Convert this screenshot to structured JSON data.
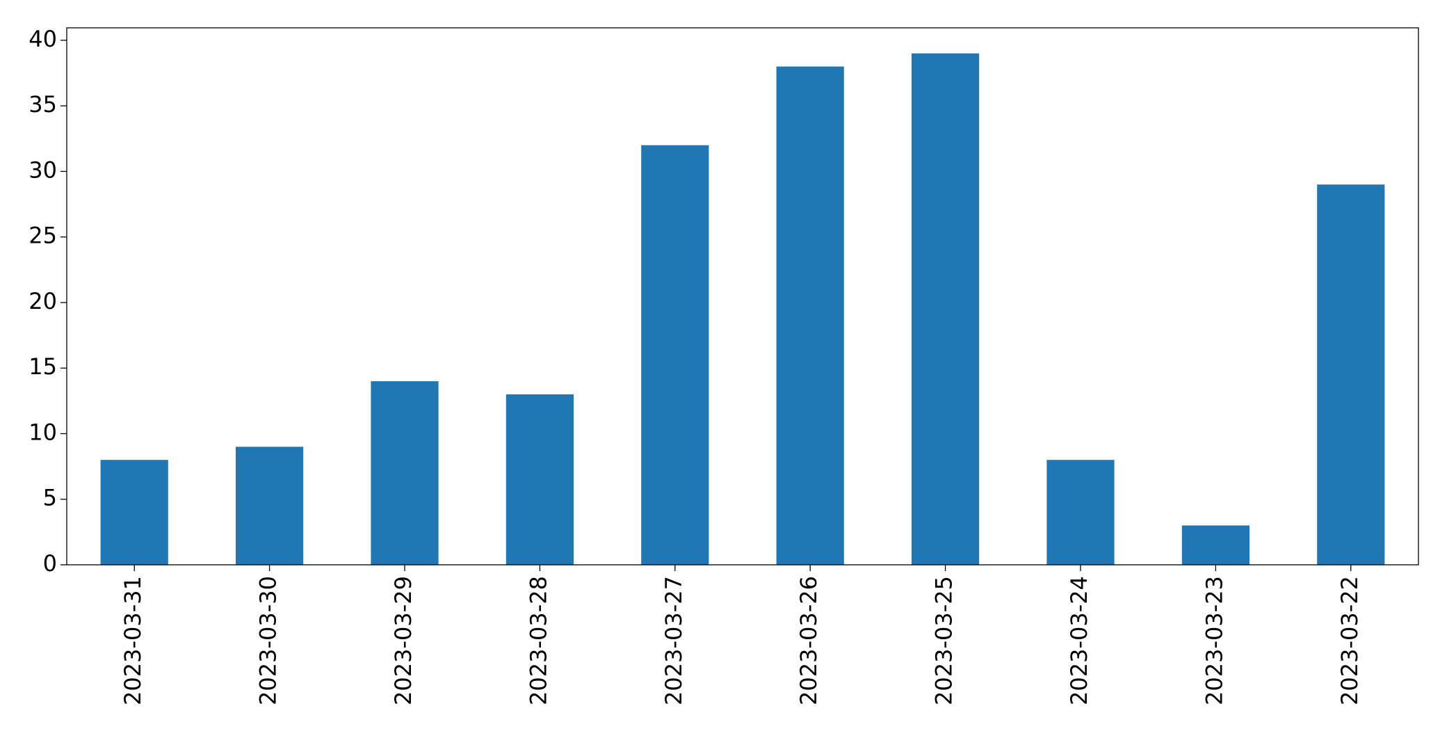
{
  "chart_data": {
    "type": "bar",
    "categories": [
      "2023-03-31",
      "2023-03-30",
      "2023-03-29",
      "2023-03-28",
      "2023-03-27",
      "2023-03-26",
      "2023-03-25",
      "2023-03-24",
      "2023-03-23",
      "2023-03-22"
    ],
    "values": [
      8,
      9,
      14,
      13,
      32,
      38,
      39,
      8,
      3,
      29
    ],
    "color": "#1f77b4",
    "ylim": [
      0,
      40.95
    ],
    "yticks": [
      0,
      5,
      10,
      15,
      20,
      25,
      30,
      35,
      40
    ],
    "grid": false
  }
}
